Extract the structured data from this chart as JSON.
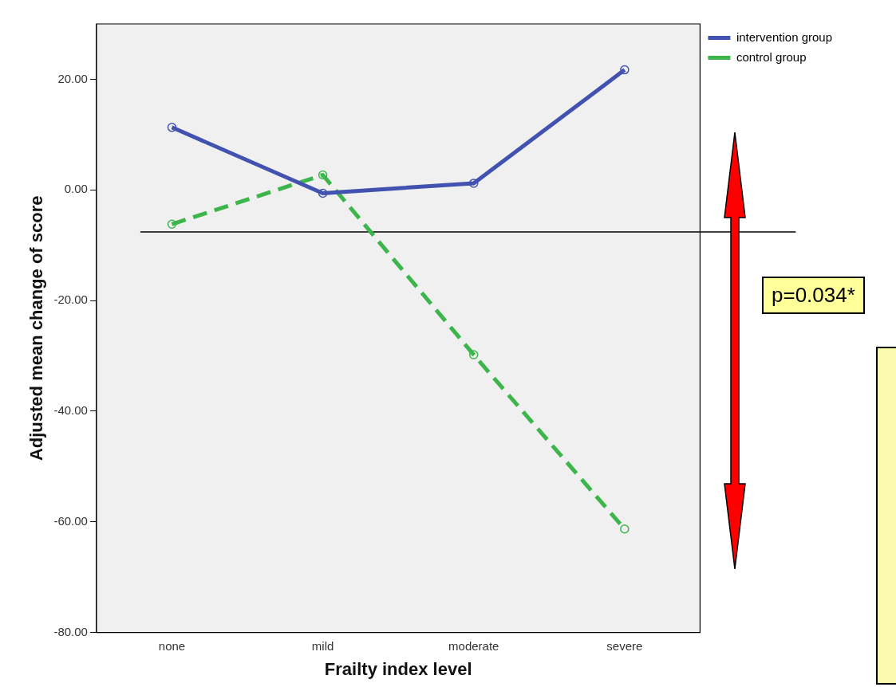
{
  "chart_data": {
    "type": "line",
    "xlabel": "Frailty index level",
    "ylabel": "Adjusted mean change of score",
    "categories": [
      "none",
      "mild",
      "moderate",
      "severe"
    ],
    "series": [
      {
        "name": "intervention group",
        "color": "#4152b0",
        "values": [
          11.3,
          -0.6,
          1.2,
          21.7
        ],
        "line_style": "solid"
      },
      {
        "name": "control group",
        "color": "#3cb54a",
        "values": [
          -6.2,
          2.7,
          -29.8,
          -61.3
        ],
        "line_style": "dashed"
      }
    ],
    "ylim": [
      -80,
      30
    ],
    "yticks": [
      {
        "value": 20,
        "label": "20.00"
      },
      {
        "value": 0,
        "label": "0.00"
      },
      {
        "value": -20,
        "label": "-20.00"
      },
      {
        "value": -40,
        "label": "-40.00"
      },
      {
        "value": -60,
        "label": "-60.00"
      },
      {
        "value": -80,
        "label": "-80.00"
      }
    ],
    "ref_lines": [
      {
        "axis": "y",
        "value": -7.6,
        "color": "#000000"
      }
    ],
    "annotations": [
      "p=0.034*"
    ],
    "marker": "circle",
    "grid": false,
    "legend": "top right"
  }
}
